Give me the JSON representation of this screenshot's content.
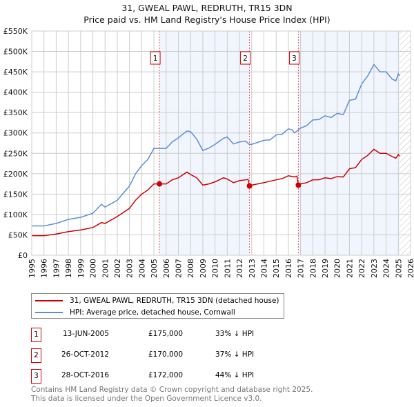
{
  "chart_data": {
    "type": "line",
    "title": "31, GWEAL PAWL, REDRUTH, TR15 3DN",
    "subtitle": "Price paid vs. HM Land Registry's House Price Index (HPI)",
    "xlim": [
      1995,
      2026
    ],
    "ylim": [
      0,
      550000
    ],
    "x_ticks": [
      "1995",
      "1996",
      "1997",
      "1998",
      "1999",
      "2000",
      "2001",
      "2002",
      "2003",
      "2004",
      "2005",
      "2006",
      "2007",
      "2008",
      "2009",
      "2010",
      "2011",
      "2012",
      "2013",
      "2014",
      "2015",
      "2016",
      "2017",
      "2018",
      "2019",
      "2020",
      "2021",
      "2022",
      "2023",
      "2024",
      "2025",
      "2026"
    ],
    "y_ticks": [
      "£0",
      "£50K",
      "£100K",
      "£150K",
      "£200K",
      "£250K",
      "£300K",
      "£350K",
      "£400K",
      "£450K",
      "£500K",
      "£550K"
    ],
    "grid": true,
    "data_end": 2025.1,
    "series": [
      {
        "name": "31, GWEAL PAWL, REDRUTH, TR15 3DN (detached house)",
        "color": "#cc0000",
        "points": [
          [
            1995,
            48
          ],
          [
            1996,
            48
          ],
          [
            1997,
            52
          ],
          [
            1998,
            58
          ],
          [
            1999,
            62
          ],
          [
            2000,
            68
          ],
          [
            2000.7,
            80
          ],
          [
            2001,
            78
          ],
          [
            2002,
            95
          ],
          [
            2003,
            115
          ],
          [
            2003.5,
            135
          ],
          [
            2004,
            150
          ],
          [
            2004.5,
            160
          ],
          [
            2005,
            175
          ],
          [
            2005.45,
            175
          ],
          [
            2006,
            175
          ],
          [
            2006.5,
            185
          ],
          [
            2007,
            190
          ],
          [
            2007.7,
            204
          ],
          [
            2008,
            198
          ],
          [
            2008.5,
            190
          ],
          [
            2009,
            172
          ],
          [
            2009.5,
            175
          ],
          [
            2010,
            180
          ],
          [
            2010.7,
            190
          ],
          [
            2011,
            187
          ],
          [
            2011.5,
            178
          ],
          [
            2012,
            183
          ],
          [
            2012.5,
            185
          ],
          [
            2012.7,
            186
          ],
          [
            2012.82,
            170
          ],
          [
            2013,
            172
          ],
          [
            2014,
            178
          ],
          [
            2015,
            185
          ],
          [
            2015.5,
            188
          ],
          [
            2016,
            195
          ],
          [
            2016.5,
            192
          ],
          [
            2016.7,
            194
          ],
          [
            2016.82,
            172
          ],
          [
            2017,
            175
          ],
          [
            2017.5,
            178
          ],
          [
            2018,
            185
          ],
          [
            2018.5,
            185
          ],
          [
            2019,
            190
          ],
          [
            2019.5,
            188
          ],
          [
            2020,
            193
          ],
          [
            2020.5,
            192
          ],
          [
            2021,
            212
          ],
          [
            2021.5,
            215
          ],
          [
            2022,
            235
          ],
          [
            2022.5,
            245
          ],
          [
            2023,
            260
          ],
          [
            2023.5,
            250
          ],
          [
            2024,
            250
          ],
          [
            2024.5,
            242
          ],
          [
            2024.8,
            238
          ],
          [
            2025,
            247
          ],
          [
            2025.1,
            243
          ]
        ]
      },
      {
        "name": "HPI: Average price, detached house, Cornwall",
        "color": "#5b8fd4",
        "points": [
          [
            1995,
            72
          ],
          [
            1996,
            72
          ],
          [
            1997,
            78
          ],
          [
            1998,
            88
          ],
          [
            1999,
            93
          ],
          [
            2000,
            103
          ],
          [
            2000.7,
            125
          ],
          [
            2001,
            118
          ],
          [
            2002,
            135
          ],
          [
            2003,
            170
          ],
          [
            2003.5,
            200
          ],
          [
            2004,
            220
          ],
          [
            2004.5,
            235
          ],
          [
            2005,
            262
          ],
          [
            2005.5,
            262
          ],
          [
            2006,
            262
          ],
          [
            2006.5,
            278
          ],
          [
            2007,
            288
          ],
          [
            2007.7,
            305
          ],
          [
            2008,
            303
          ],
          [
            2008.5,
            285
          ],
          [
            2009,
            257
          ],
          [
            2009.5,
            263
          ],
          [
            2010,
            272
          ],
          [
            2010.7,
            287
          ],
          [
            2011,
            290
          ],
          [
            2011.5,
            273
          ],
          [
            2012,
            278
          ],
          [
            2012.5,
            280
          ],
          [
            2012.8,
            272
          ],
          [
            2013,
            272
          ],
          [
            2014,
            282
          ],
          [
            2014.5,
            283
          ],
          [
            2015,
            295
          ],
          [
            2015.5,
            297
          ],
          [
            2016,
            310
          ],
          [
            2016.3,
            308
          ],
          [
            2016.5,
            300
          ],
          [
            2017,
            312
          ],
          [
            2017.5,
            318
          ],
          [
            2018,
            332
          ],
          [
            2018.5,
            333
          ],
          [
            2019,
            342
          ],
          [
            2019.5,
            338
          ],
          [
            2020,
            348
          ],
          [
            2020.5,
            345
          ],
          [
            2021,
            380
          ],
          [
            2021.5,
            383
          ],
          [
            2022,
            420
          ],
          [
            2022.5,
            440
          ],
          [
            2023,
            468
          ],
          [
            2023.5,
            450
          ],
          [
            2024,
            450
          ],
          [
            2024.5,
            432
          ],
          [
            2024.8,
            428
          ],
          [
            2025,
            445
          ],
          [
            2025.1,
            440
          ]
        ]
      }
    ],
    "sales": [
      {
        "label": "1",
        "x": 2005.45,
        "price": 175000
      },
      {
        "label": "2",
        "x": 2012.82,
        "price": 170000
      },
      {
        "label": "3",
        "x": 2016.82,
        "price": 172000
      }
    ]
  },
  "legend": {
    "property": "31, GWEAL PAWL, REDRUTH, TR15 3DN (detached house)",
    "hpi": "HPI: Average price, detached house, Cornwall"
  },
  "transactions": [
    {
      "num": "1",
      "date": "13-JUN-2005",
      "price": "£175,000",
      "diff": "33% ↓ HPI"
    },
    {
      "num": "2",
      "date": "26-OCT-2012",
      "price": "£170,000",
      "diff": "37% ↓ HPI"
    },
    {
      "num": "3",
      "date": "28-OCT-2016",
      "price": "£172,000",
      "diff": "44% ↓ HPI"
    }
  ],
  "footer": {
    "line1": "Contains HM Land Registry data © Crown copyright and database right 2025.",
    "line2": "This data is licensed under the Open Government Licence v3.0."
  }
}
